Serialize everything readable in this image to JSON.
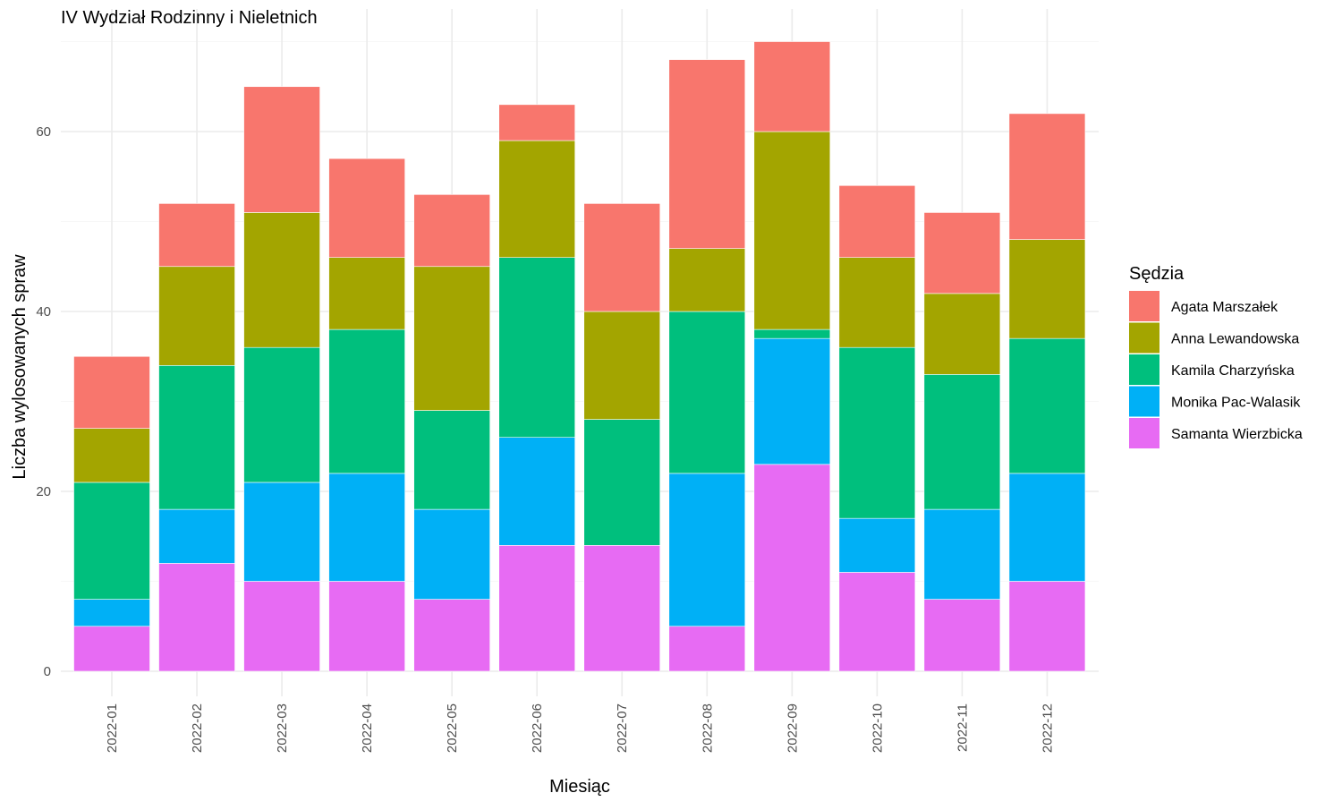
{
  "chart_data": {
    "type": "bar",
    "stacked": true,
    "title": "IV Wydział Rodzinny i Nieletnich",
    "xlabel": "Miesiąc",
    "ylabel": "Liczba wylosowanych spraw",
    "ylim": [
      0,
      72
    ],
    "yticks": [
      0,
      20,
      40,
      60
    ],
    "grid": true,
    "legend_title": "Sędzia",
    "legend_position": "right",
    "categories": [
      "2022-01",
      "2022-02",
      "2022-03",
      "2022-04",
      "2022-05",
      "2022-06",
      "2022-07",
      "2022-08",
      "2022-09",
      "2022-10",
      "2022-11",
      "2022-12"
    ],
    "series": [
      {
        "name": "Samanta Wierzbicka",
        "color": "#E76BF3",
        "values": [
          5,
          12,
          10,
          10,
          8,
          14,
          14,
          5,
          23,
          11,
          8,
          10
        ]
      },
      {
        "name": "Monika Pac-Walasik",
        "color": "#00B0F6",
        "values": [
          3,
          6,
          11,
          12,
          10,
          12,
          0,
          17,
          14,
          6,
          10,
          12
        ]
      },
      {
        "name": "Kamila Charzyńska",
        "color": "#00BF7D",
        "values": [
          13,
          16,
          15,
          16,
          11,
          20,
          14,
          18,
          1,
          19,
          15,
          15
        ]
      },
      {
        "name": "Anna Lewandowska",
        "color": "#A3A500",
        "values": [
          6,
          11,
          15,
          8,
          16,
          13,
          12,
          7,
          22,
          10,
          9,
          11
        ]
      },
      {
        "name": "Agata Marszałek",
        "color": "#F8766D",
        "values": [
          8,
          7,
          14,
          11,
          8,
          4,
          12,
          21,
          10,
          8,
          9,
          14
        ]
      }
    ],
    "legend_order": [
      "Agata Marszałek",
      "Anna Lewandowska",
      "Kamila Charzyńska",
      "Monika Pac-Walasik",
      "Samanta Wierzbicka"
    ]
  }
}
